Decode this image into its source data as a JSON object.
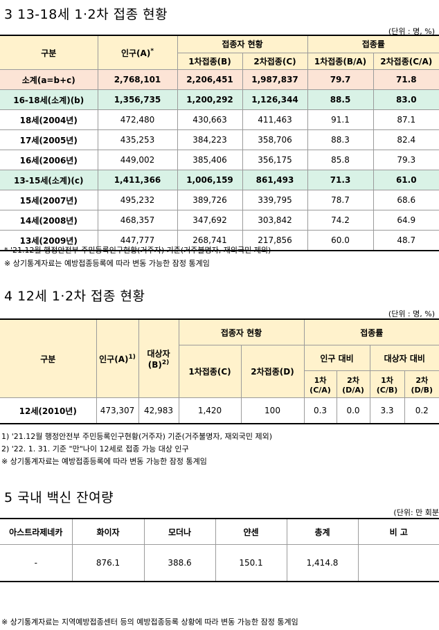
{
  "section3": {
    "title": "3  13-18세 1·2차 접종 현황",
    "unit": "(단위 : 명, %)",
    "headers": {
      "category": "구분",
      "population": "인구(A)",
      "population_mark": "*",
      "vaccinated_group": "접종자 현황",
      "rate_group": "접종률",
      "dose1": "1차접종(B)",
      "dose2": "2차접종(C)",
      "rate1": "1차접종(B/A)",
      "rate2": "2차접종(C/A)"
    },
    "rows": [
      {
        "label": "소계(a=b+c)",
        "pop": "2,768,101",
        "d1": "2,206,451",
        "d2": "1,987,837",
        "r1": "79.7",
        "r2": "71.8"
      },
      {
        "label": "16-18세(소계)(b)",
        "pop": "1,356,735",
        "d1": "1,200,292",
        "d2": "1,126,344",
        "r1": "88.5",
        "r2": "83.0"
      },
      {
        "label": "18세(2004년)",
        "pop": "472,480",
        "d1": "430,663",
        "d2": "411,463",
        "r1": "91.1",
        "r2": "87.1"
      },
      {
        "label": "17세(2005년)",
        "pop": "435,253",
        "d1": "384,223",
        "d2": "358,706",
        "r1": "88.3",
        "r2": "82.4"
      },
      {
        "label": "16세(2006년)",
        "pop": "449,002",
        "d1": "385,406",
        "d2": "356,175",
        "r1": "85.8",
        "r2": "79.3"
      },
      {
        "label": "13-15세(소계)(c)",
        "pop": "1,411,366",
        "d1": "1,006,159",
        "d2": "861,493",
        "r1": "71.3",
        "r2": "61.0"
      },
      {
        "label": "15세(2007년)",
        "pop": "495,232",
        "d1": "389,726",
        "d2": "339,795",
        "r1": "78.7",
        "r2": "68.6"
      },
      {
        "label": "14세(2008년)",
        "pop": "468,357",
        "d1": "347,692",
        "d2": "303,842",
        "r1": "74.2",
        "r2": "64.9"
      },
      {
        "label": "13세(2009년)",
        "pop": "447,777",
        "d1": "268,741",
        "d2": "217,856",
        "r1": "60.0",
        "r2": "48.7"
      }
    ],
    "note1": "* '21.12월 행정안전부 주민등록인구현황(거주자) 기준(거주불명자, 재외국민 제외)",
    "note2": "※ 상기통계자료는 예방접종등록에 따라 변동 가능한 잠정 통계임"
  },
  "section4": {
    "title": "4  12세 1·2차 접종 현황",
    "unit": "(단위 : 명, %)",
    "headers": {
      "category": "구분",
      "population": "인구(A)",
      "population_mark": "1)",
      "target_line1": "대상자",
      "target_line2": "(B)",
      "target_mark": "2)",
      "vaccinated_group": "접종자 현황",
      "rate_group": "접종률",
      "dose1": "1차접종(C)",
      "dose2": "2차접종(D)",
      "pop_ratio": "인구 대비",
      "target_ratio": "대상자 대비",
      "c1a": "1차",
      "c1b": "(C/A)",
      "c2a": "2차",
      "c2b": "(D/A)",
      "c3a": "1차",
      "c3b": "(C/B)",
      "c4a": "2차",
      "c4b": "(D/B)"
    },
    "row": {
      "label": "12세(2010년)",
      "pop": "473,307",
      "target": "42,983",
      "d1": "1,420",
      "d2": "100",
      "r1": "0.3",
      "r2": "0.0",
      "r3": "3.3",
      "r4": "0.2"
    },
    "note1": "1) '21.12월 행정안전부 주민등록인구현황(거주자) 기준(거주불명자, 재외국민 제외)",
    "note2": "2) '22. 1. 31. 기준 \"만\"나이 12세로 접종 가능 대상 인구",
    "note3": "※ 상기통계자료는 예방접종등록에 따라 변동 가능한 잠정 통계임"
  },
  "section5": {
    "title": "5  국내 백신 잔여량",
    "unit": "(단위: 만 회분",
    "headers": [
      "아스트라제네카",
      "화이자",
      "모더나",
      "얀센",
      "총계",
      "비 고"
    ],
    "values": [
      "-",
      "876.1",
      "388.6",
      "150.1",
      "1,414.8",
      ""
    ],
    "note": "※ 상기통계자료는 지역예방접종센터 등의 예방접종등록 상황에 따라 변동 가능한 잠정 통계임"
  }
}
